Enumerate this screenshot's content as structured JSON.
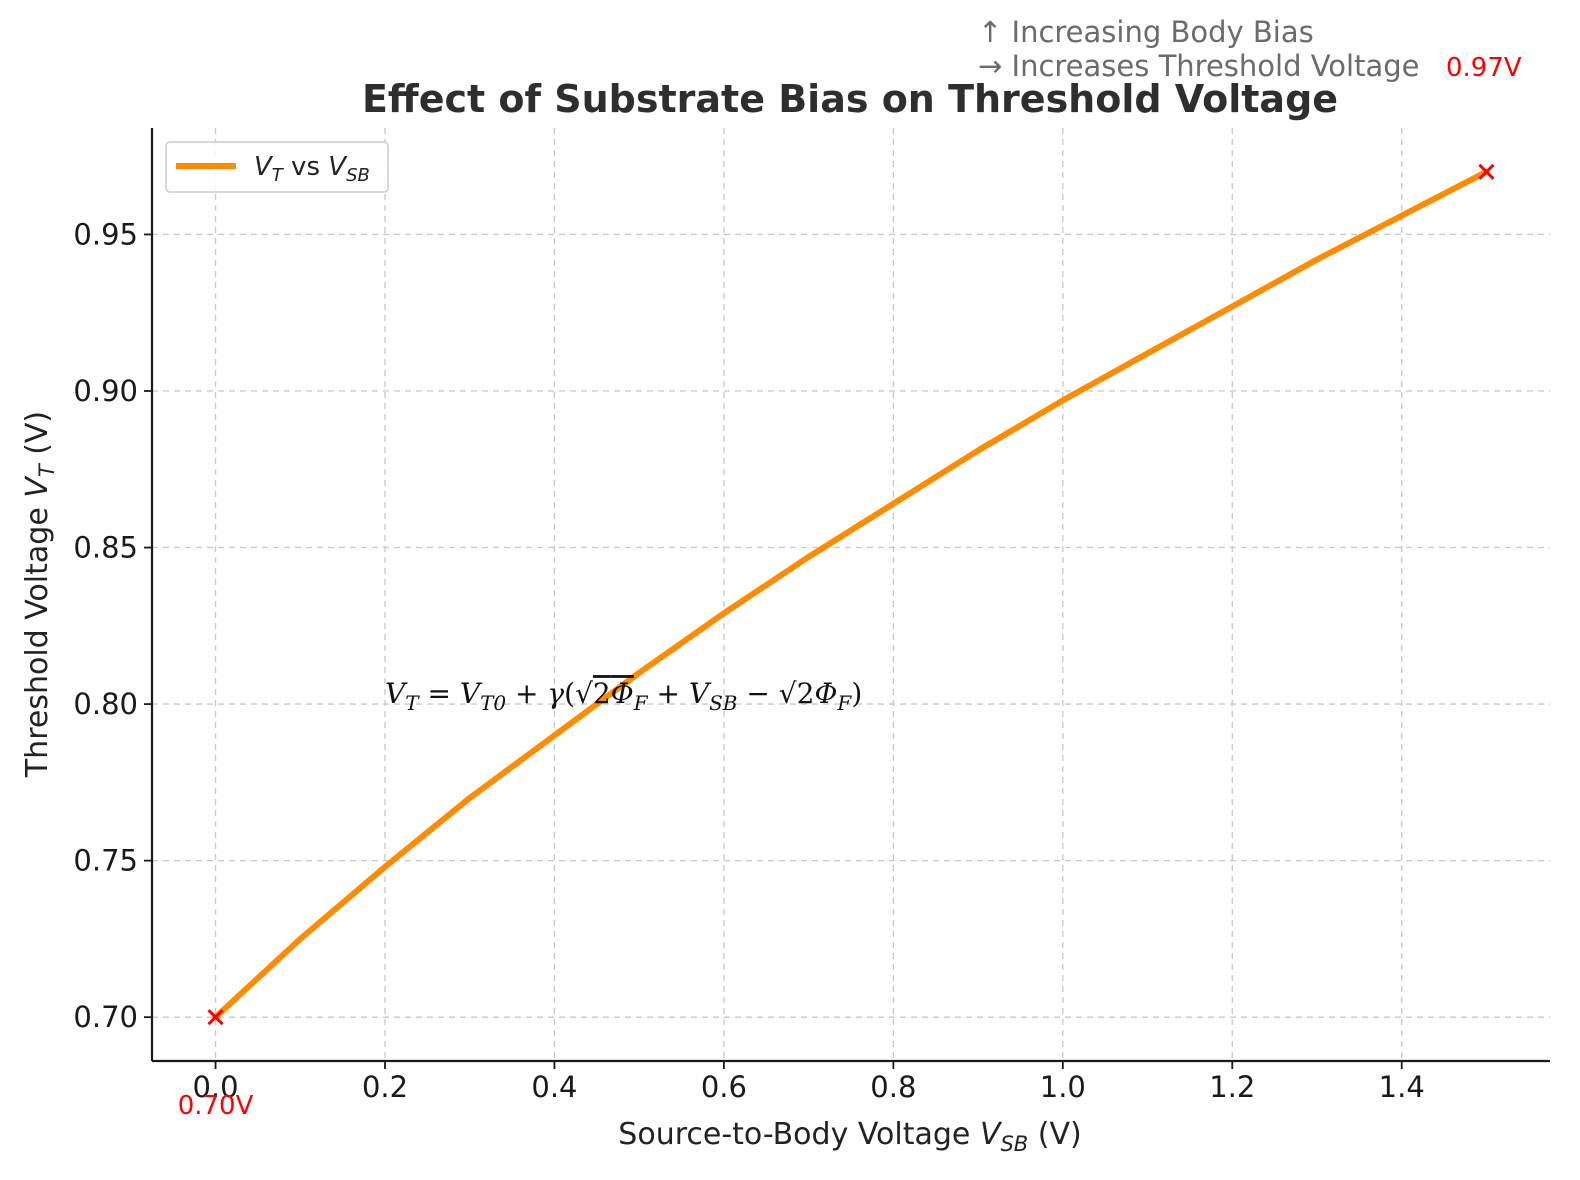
{
  "chart_data": {
    "type": "line",
    "title": "Effect of Substrate Bias on Threshold Voltage",
    "xlabel": {
      "main": "Source-to-Body Voltage  ",
      "sym": "V",
      "sub": "SB",
      "unit": " (V)"
    },
    "ylabel": {
      "main": "Threshold Voltage  ",
      "sym": "V",
      "sub": "T",
      "unit": " (V)"
    },
    "xlim": [
      -0.075,
      1.575
    ],
    "ylim": [
      0.686,
      0.984
    ],
    "xticks": [
      "0.0",
      "0.2",
      "0.4",
      "0.6",
      "0.8",
      "1.0",
      "1.2",
      "1.4"
    ],
    "yticks": [
      "0.70",
      "0.75",
      "0.80",
      "0.85",
      "0.90",
      "0.95"
    ],
    "grid": true,
    "legend": {
      "position": "top-left",
      "entry": {
        "sym1": "V",
        "sub1": "T",
        "mid": " vs ",
        "sym2": "V",
        "sub2": "SB"
      }
    },
    "series": [
      {
        "name": "VT vs VSB",
        "color": "#ff8c00",
        "x": [
          0.0,
          0.1,
          0.2,
          0.3,
          0.4,
          0.5,
          0.6,
          0.7,
          0.8,
          0.9,
          1.0,
          1.1,
          1.2,
          1.3,
          1.4,
          1.5
        ],
        "y": [
          0.7,
          0.725,
          0.748,
          0.77,
          0.79,
          0.81,
          0.829,
          0.847,
          0.864,
          0.881,
          0.897,
          0.912,
          0.927,
          0.942,
          0.956,
          0.97
        ]
      }
    ],
    "markers": [
      {
        "x": 0.0,
        "y": 0.7,
        "label": "0.70V",
        "color": "#ff0000",
        "symbol": "x"
      },
      {
        "x": 1.5,
        "y": 0.97,
        "label": "0.97V",
        "color": "#ff0000",
        "symbol": "x"
      }
    ],
    "annotations": {
      "formula": {
        "at_x": 0.2,
        "at_y": 0.8
      },
      "note_lines": [
        "↑ Increasing Body Bias",
        "→ Increases Threshold Voltage"
      ]
    }
  }
}
